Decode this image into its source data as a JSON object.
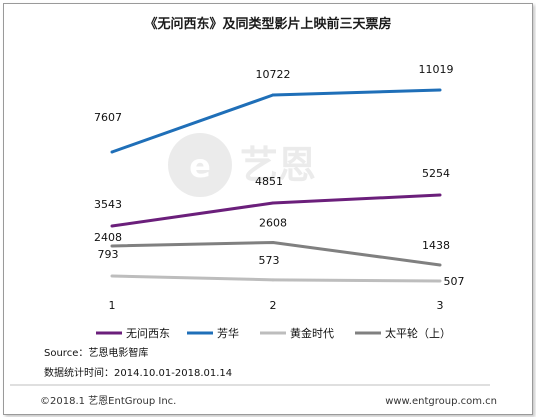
{
  "chart_data": {
    "type": "line",
    "title": "《无问西东》及同类型影片上映前三天票房",
    "categories": [
      "1",
      "2",
      "3"
    ],
    "series": [
      {
        "name": "无问西东",
        "values": [
          3543,
          4851,
          5254
        ],
        "color": "#6b1f7b"
      },
      {
        "name": "芳华",
        "values": [
          7607,
          10722,
          11019
        ],
        "color": "#1f6fb8"
      },
      {
        "name": "黄金时代",
        "values": [
          793,
          573,
          507
        ],
        "color": "#bdbdbd"
      },
      {
        "name": "太平轮（上）",
        "values": [
          2408,
          2608,
          1438
        ],
        "color": "#808080"
      }
    ],
    "grid": false,
    "legend_position": "bottom"
  },
  "source": "Source：艺恩电影智库",
  "stat_period": "数据统计时间：2014.10.01-2018.01.14",
  "footer": {
    "copyright": "©2018.1 艺恩EntGroup Inc.",
    "url": "www.entgroup.com.cn"
  },
  "watermark": {
    "text": "艺恩"
  }
}
